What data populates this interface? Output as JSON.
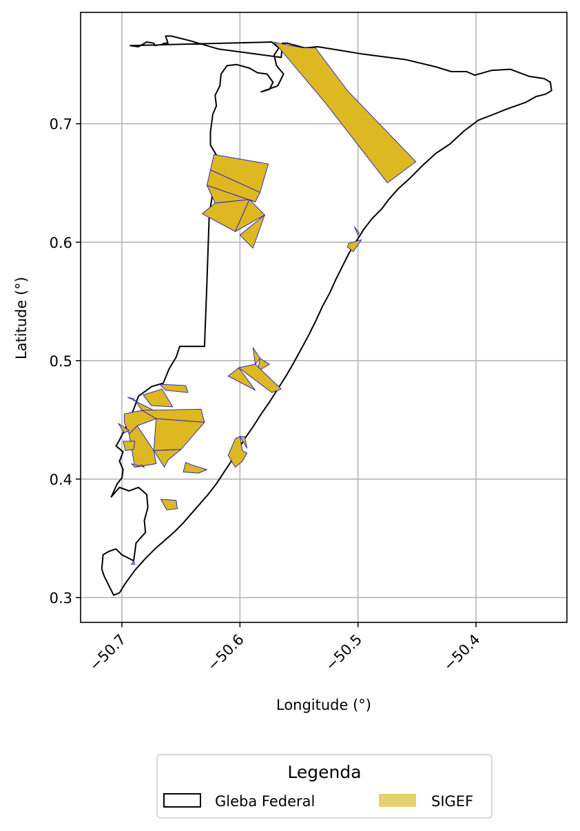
{
  "chart_data": {
    "type": "map",
    "xlabel": "Longitude (°)",
    "ylabel": "Latitude (°)",
    "xlim": [
      -50.735,
      -50.323
    ],
    "ylim": [
      0.279,
      0.794
    ],
    "xticks": [
      -50.7,
      -50.6,
      -50.5,
      -50.4
    ],
    "xtick_labels": [
      "−50.7",
      "−50.6",
      "−50.5",
      "−50.4"
    ],
    "yticks": [
      0.3,
      0.4,
      0.5,
      0.6,
      0.7
    ],
    "ytick_labels": [
      "0.3",
      "0.4",
      "0.5",
      "0.6",
      "0.7"
    ],
    "grid": true,
    "legend": {
      "title": "Legenda",
      "placement": "bottom-center, below plot",
      "entries": [
        {
          "label": "Gleba Federal",
          "style": "outline",
          "edge_color": "#000000",
          "fill": "none"
        },
        {
          "label": "SIGEF",
          "style": "filled",
          "fill": "#E6D06E"
        }
      ]
    },
    "colors": {
      "sigef_fill": "#DDB820",
      "sigef_edge": "#1A1ACC",
      "gleba_edge": "#000000",
      "grid": "#B0B0B0"
    },
    "boundary": [
      [
        -50.693,
        0.766
      ],
      [
        -50.686,
        0.765
      ],
      [
        -50.679,
        0.769
      ],
      [
        -50.673,
        0.768
      ],
      [
        -50.672,
        0.766
      ],
      [
        -50.666,
        0.767
      ],
      [
        -50.664,
        0.768
      ],
      [
        -50.661,
        0.768
      ],
      [
        -50.663,
        0.774
      ],
      [
        -50.658,
        0.774
      ],
      [
        -50.642,
        0.77
      ],
      [
        -50.618,
        0.763
      ],
      [
        -50.565,
        0.756
      ],
      [
        -50.564,
        0.768
      ],
      [
        -50.56,
        0.768
      ],
      [
        -50.545,
        0.764
      ],
      [
        -50.534,
        0.765
      ],
      [
        -50.497,
        0.759
      ],
      [
        -50.459,
        0.754
      ],
      [
        -50.434,
        0.748
      ],
      [
        -50.421,
        0.744
      ],
      [
        -50.408,
        0.744
      ],
      [
        -50.401,
        0.741
      ],
      [
        -50.387,
        0.745
      ],
      [
        -50.371,
        0.746
      ],
      [
        -50.355,
        0.74
      ],
      [
        -50.342,
        0.738
      ],
      [
        -50.337,
        0.735
      ],
      [
        -50.336,
        0.728
      ],
      [
        -50.341,
        0.725
      ],
      [
        -50.349,
        0.723
      ],
      [
        -50.358,
        0.718
      ],
      [
        -50.375,
        0.712
      ],
      [
        -50.385,
        0.708
      ],
      [
        -50.398,
        0.703
      ],
      [
        -50.41,
        0.694
      ],
      [
        -50.422,
        0.683
      ],
      [
        -50.434,
        0.675
      ],
      [
        -50.445,
        0.665
      ],
      [
        -50.456,
        0.654
      ],
      [
        -50.466,
        0.645
      ],
      [
        -50.474,
        0.636
      ],
      [
        -50.48,
        0.628
      ],
      [
        -50.488,
        0.62
      ],
      [
        -50.495,
        0.611
      ],
      [
        -50.502,
        0.6
      ],
      [
        -50.508,
        0.59
      ],
      [
        -50.513,
        0.58
      ],
      [
        -50.519,
        0.568
      ],
      [
        -50.524,
        0.557
      ],
      [
        -50.53,
        0.546
      ],
      [
        -50.536,
        0.533
      ],
      [
        -50.542,
        0.521
      ],
      [
        -50.548,
        0.51
      ],
      [
        -50.554,
        0.499
      ],
      [
        -50.561,
        0.487
      ],
      [
        -50.568,
        0.476
      ],
      [
        -50.575,
        0.465
      ],
      [
        -50.582,
        0.455
      ],
      [
        -50.589,
        0.444
      ],
      [
        -50.596,
        0.434
      ],
      [
        -50.602,
        0.424
      ],
      [
        -50.608,
        0.414
      ],
      [
        -50.614,
        0.405
      ],
      [
        -50.62,
        0.396
      ],
      [
        -50.627,
        0.387
      ],
      [
        -50.634,
        0.379
      ],
      [
        -50.641,
        0.371
      ],
      [
        -50.648,
        0.363
      ],
      [
        -50.656,
        0.355
      ],
      [
        -50.664,
        0.348
      ],
      [
        -50.672,
        0.341
      ],
      [
        -50.68,
        0.333
      ],
      [
        -50.689,
        0.323
      ],
      [
        -50.697,
        0.312
      ],
      [
        -50.702,
        0.304
      ],
      [
        -50.707,
        0.302
      ],
      [
        -50.715,
        0.318
      ],
      [
        -50.717,
        0.324
      ],
      [
        -50.716,
        0.336
      ],
      [
        -50.711,
        0.339
      ],
      [
        -50.705,
        0.341
      ],
      [
        -50.7,
        0.336
      ],
      [
        -50.69,
        0.331
      ],
      [
        -50.688,
        0.346
      ],
      [
        -50.68,
        0.355
      ],
      [
        -50.681,
        0.365
      ],
      [
        -50.678,
        0.376
      ],
      [
        -50.679,
        0.387
      ],
      [
        -50.686,
        0.393
      ],
      [
        -50.694,
        0.39
      ],
      [
        -50.702,
        0.393
      ],
      [
        -50.709,
        0.385
      ],
      [
        -50.704,
        0.396
      ],
      [
        -50.7,
        0.401
      ],
      [
        -50.699,
        0.408
      ],
      [
        -50.702,
        0.415
      ],
      [
        -50.699,
        0.423
      ],
      [
        -50.705,
        0.428
      ],
      [
        -50.702,
        0.433
      ],
      [
        -50.697,
        0.443
      ],
      [
        -50.69,
        0.459
      ],
      [
        -50.686,
        0.47
      ],
      [
        -50.679,
        0.475
      ],
      [
        -50.675,
        0.478
      ],
      [
        -50.665,
        0.481
      ],
      [
        -50.66,
        0.493
      ],
      [
        -50.654,
        0.503
      ],
      [
        -50.651,
        0.512
      ],
      [
        -50.63,
        0.512
      ],
      [
        -50.628,
        0.566
      ],
      [
        -50.626,
        0.624
      ],
      [
        -50.621,
        0.653
      ],
      [
        -50.619,
        0.672
      ],
      [
        -50.625,
        0.682
      ],
      [
        -50.625,
        0.693
      ],
      [
        -50.623,
        0.708
      ],
      [
        -50.62,
        0.715
      ],
      [
        -50.621,
        0.724
      ],
      [
        -50.617,
        0.732
      ],
      [
        -50.616,
        0.742
      ],
      [
        -50.611,
        0.749
      ],
      [
        -50.603,
        0.75
      ],
      [
        -50.592,
        0.747
      ],
      [
        -50.585,
        0.743
      ],
      [
        -50.577,
        0.742
      ],
      [
        -50.572,
        0.735
      ],
      [
        -50.575,
        0.729
      ],
      [
        -50.582,
        0.727
      ],
      [
        -50.568,
        0.732
      ],
      [
        -50.563,
        0.742
      ],
      [
        -50.569,
        0.749
      ],
      [
        -50.571,
        0.758
      ],
      [
        -50.567,
        0.764
      ],
      [
        -50.573,
        0.769
      ],
      [
        -50.693,
        0.766
      ]
    ],
    "sigef_parcels": [
      [
        [
          -50.571,
          0.769
        ],
        [
          -50.567,
          0.768
        ],
        [
          -50.557,
          0.766
        ],
        [
          -50.546,
          0.764
        ],
        [
          -50.536,
          0.764
        ],
        [
          -50.509,
          0.728
        ],
        [
          -50.451,
          0.668
        ],
        [
          -50.475,
          0.65
        ],
        [
          -50.528,
          0.718
        ]
      ],
      [
        [
          -50.622,
          0.674
        ],
        [
          -50.576,
          0.666
        ],
        [
          -50.583,
          0.642
        ],
        [
          -50.625,
          0.661
        ]
      ],
      [
        [
          -50.625,
          0.661
        ],
        [
          -50.583,
          0.642
        ],
        [
          -50.587,
          0.634
        ],
        [
          -50.628,
          0.648
        ]
      ],
      [
        [
          -50.628,
          0.648
        ],
        [
          -50.587,
          0.634
        ],
        [
          -50.592,
          0.636
        ],
        [
          -50.621,
          0.633
        ]
      ],
      [
        [
          -50.621,
          0.633
        ],
        [
          -50.592,
          0.636
        ],
        [
          -50.604,
          0.609
        ],
        [
          -50.632,
          0.624
        ]
      ],
      [
        [
          -50.592,
          0.636
        ],
        [
          -50.579,
          0.623
        ],
        [
          -50.604,
          0.609
        ]
      ],
      [
        [
          -50.579,
          0.623
        ],
        [
          -50.589,
          0.595
        ],
        [
          -50.6,
          0.606
        ]
      ],
      [
        [
          -50.589,
          0.511
        ],
        [
          -50.583,
          0.502
        ],
        [
          -50.587,
          0.497
        ]
      ],
      [
        [
          -50.583,
          0.502
        ],
        [
          -50.575,
          0.497
        ],
        [
          -50.585,
          0.491
        ]
      ],
      [
        [
          -50.587,
          0.497
        ],
        [
          -50.565,
          0.476
        ],
        [
          -50.573,
          0.473
        ],
        [
          -50.601,
          0.494
        ]
      ],
      [
        [
          -50.601,
          0.494
        ],
        [
          -50.61,
          0.487
        ],
        [
          -50.587,
          0.475
        ]
      ],
      [
        [
          -50.668,
          0.48
        ],
        [
          -50.646,
          0.479
        ],
        [
          -50.644,
          0.473
        ],
        [
          -50.663,
          0.475
        ]
      ],
      [
        [
          -50.666,
          0.476
        ],
        [
          -50.657,
          0.461
        ],
        [
          -50.675,
          0.462
        ],
        [
          -50.682,
          0.471
        ]
      ],
      [
        [
          -50.695,
          0.469
        ],
        [
          -50.69,
          0.468
        ],
        [
          -50.683,
          0.458
        ],
        [
          -50.671,
          0.457
        ]
      ],
      [
        [
          -50.683,
          0.458
        ],
        [
          -50.633,
          0.459
        ],
        [
          -50.63,
          0.448
        ],
        [
          -50.671,
          0.451
        ]
      ],
      [
        [
          -50.671,
          0.451
        ],
        [
          -50.63,
          0.448
        ],
        [
          -50.65,
          0.425
        ],
        [
          -50.673,
          0.424
        ]
      ],
      [
        [
          -50.673,
          0.424
        ],
        [
          -50.65,
          0.425
        ],
        [
          -50.661,
          0.416
        ],
        [
          -50.664,
          0.41
        ]
      ],
      [
        [
          -50.698,
          0.455
        ],
        [
          -50.683,
          0.458
        ],
        [
          -50.671,
          0.451
        ],
        [
          -50.687,
          0.445
        ],
        [
          -50.694,
          0.438
        ],
        [
          -50.698,
          0.448
        ]
      ],
      [
        [
          -50.703,
          0.447
        ],
        [
          -50.698,
          0.439
        ],
        [
          -50.694,
          0.441
        ]
      ],
      [
        [
          -50.694,
          0.438
        ],
        [
          -50.689,
          0.41
        ],
        [
          -50.671,
          0.413
        ],
        [
          -50.673,
          0.424
        ],
        [
          -50.687,
          0.445
        ]
      ],
      [
        [
          -50.699,
          0.432
        ],
        [
          -50.689,
          0.432
        ],
        [
          -50.69,
          0.425
        ],
        [
          -50.697,
          0.424
        ]
      ],
      [
        [
          -50.689,
          0.41
        ],
        [
          -50.683,
          0.412
        ],
        [
          -50.681,
          0.41
        ],
        [
          -50.692,
          0.413
        ]
      ],
      [
        [
          -50.646,
          0.414
        ],
        [
          -50.641,
          0.412
        ],
        [
          -50.628,
          0.408
        ],
        [
          -50.635,
          0.405
        ],
        [
          -50.648,
          0.406
        ]
      ],
      [
        [
          -50.604,
          0.434
        ],
        [
          -50.6,
          0.436
        ],
        [
          -50.598,
          0.424
        ],
        [
          -50.594,
          0.422
        ],
        [
          -50.598,
          0.415
        ],
        [
          -50.604,
          0.41
        ],
        [
          -50.61,
          0.42
        ]
      ],
      [
        [
          -50.6,
          0.436
        ],
        [
          -50.596,
          0.436
        ],
        [
          -50.594,
          0.426
        ]
      ],
      [
        [
          -50.667,
          0.383
        ],
        [
          -50.654,
          0.382
        ],
        [
          -50.653,
          0.375
        ],
        [
          -50.662,
          0.374
        ]
      ],
      [
        [
          -50.692,
          0.328
        ],
        [
          -50.69,
          0.331
        ],
        [
          -50.689,
          0.328
        ]
      ],
      [
        [
          -50.508,
          0.599
        ],
        [
          -50.497,
          0.602
        ],
        [
          -50.504,
          0.592
        ],
        [
          -50.509,
          0.596
        ]
      ],
      [
        [
          -50.503,
          0.613
        ],
        [
          -50.499,
          0.608
        ],
        [
          -50.5,
          0.606
        ]
      ]
    ]
  }
}
